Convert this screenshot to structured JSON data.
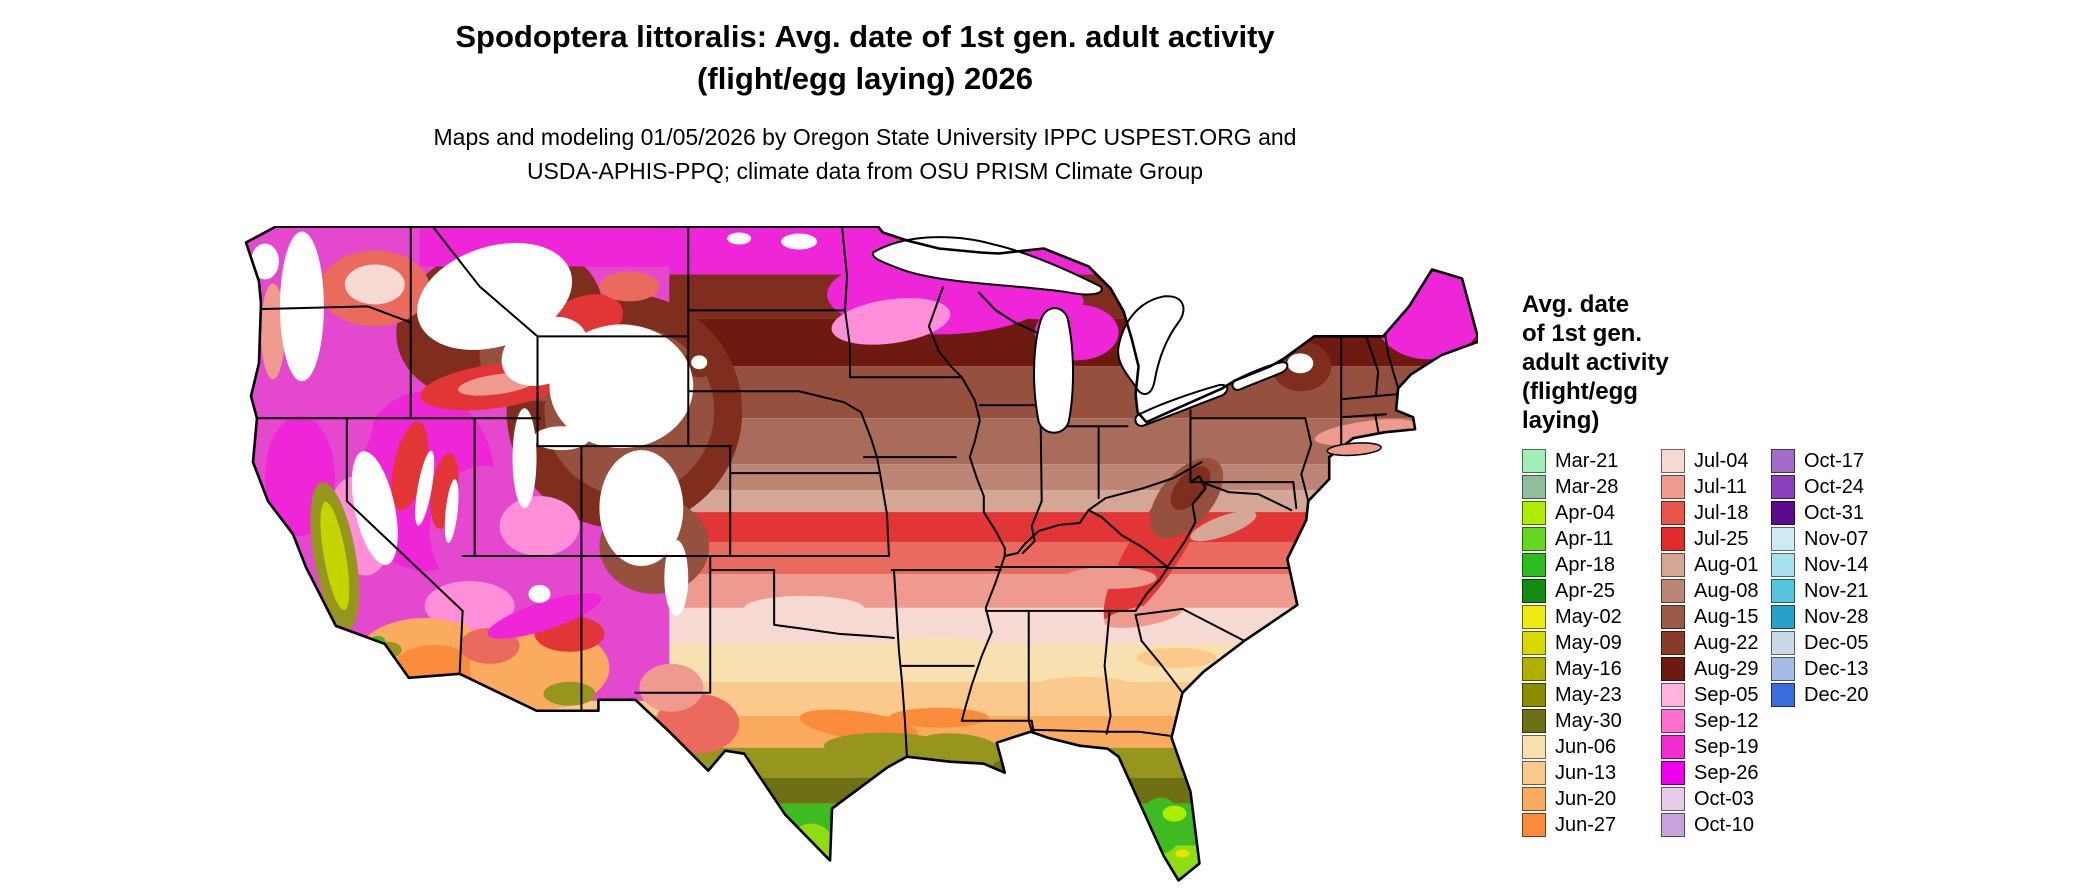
{
  "title": {
    "line1": "Spodoptera littoralis: Avg. date of 1st gen. adult activity",
    "line2": "(flight/egg laying) 2026"
  },
  "subtitle": {
    "line1": "Maps and modeling 01/05/2026 by Oregon State University IPPC USPEST.ORG and",
    "line2": "USDA-APHIS-PPQ; climate data from OSU PRISM Climate Group"
  },
  "legend": {
    "title_lines": [
      "Avg. date",
      "of 1st gen.",
      "adult activity",
      "(flight/egg",
      "laying)"
    ],
    "columns": [
      [
        {
          "label": "Mar-21",
          "color": "#9ef0b4"
        },
        {
          "label": "Mar-28",
          "color": "#8fbf9a"
        },
        {
          "label": "Apr-04",
          "color": "#abee00"
        },
        {
          "label": "Apr-11",
          "color": "#63d81e"
        },
        {
          "label": "Apr-18",
          "color": "#2dbb22"
        },
        {
          "label": "Apr-25",
          "color": "#128c12"
        },
        {
          "label": "May-02",
          "color": "#ecec13"
        },
        {
          "label": "May-09",
          "color": "#d9d900"
        },
        {
          "label": "May-16",
          "color": "#b0b000"
        },
        {
          "label": "May-23",
          "color": "#8c8c00"
        },
        {
          "label": "May-30",
          "color": "#6f6f14"
        },
        {
          "label": "Jun-06",
          "color": "#f8e0b0"
        },
        {
          "label": "Jun-13",
          "color": "#fbc98c"
        },
        {
          "label": "Jun-20",
          "color": "#fbab60"
        },
        {
          "label": "Jun-27",
          "color": "#fa8c3c"
        }
      ],
      [
        {
          "label": "Jul-04",
          "color": "#f6d9d2"
        },
        {
          "label": "Jul-11",
          "color": "#ef9a8f"
        },
        {
          "label": "Jul-18",
          "color": "#e85549"
        },
        {
          "label": "Jul-25",
          "color": "#e22c2c"
        },
        {
          "label": "Aug-01",
          "color": "#d3a696"
        },
        {
          "label": "Aug-08",
          "color": "#bc8576"
        },
        {
          "label": "Aug-15",
          "color": "#9a5a47"
        },
        {
          "label": "Aug-22",
          "color": "#8a3a28"
        },
        {
          "label": "Aug-29",
          "color": "#6e1a10"
        },
        {
          "label": "Sep-05",
          "color": "#ffb3de"
        },
        {
          "label": "Sep-12",
          "color": "#ff6fcf"
        },
        {
          "label": "Sep-19",
          "color": "#f32cd0"
        },
        {
          "label": "Sep-26",
          "color": "#ee00ee"
        },
        {
          "label": "Oct-03",
          "color": "#e8cbe8"
        },
        {
          "label": "Oct-10",
          "color": "#c9a3dd"
        }
      ],
      [
        {
          "label": "Oct-17",
          "color": "#a06cc8"
        },
        {
          "label": "Oct-24",
          "color": "#8b3fbb"
        },
        {
          "label": "Oct-31",
          "color": "#5c0a8e"
        },
        {
          "label": "Nov-07",
          "color": "#cfe9f5"
        },
        {
          "label": "Nov-14",
          "color": "#a8e0f0"
        },
        {
          "label": "Nov-21",
          "color": "#55c4e0"
        },
        {
          "label": "Nov-28",
          "color": "#2a9fc9"
        },
        {
          "label": "Dec-05",
          "color": "#c9d9ea"
        },
        {
          "label": "Dec-13",
          "color": "#a3bce8"
        },
        {
          "label": "Dec-20",
          "color": "#3a6ce0"
        }
      ]
    ]
  },
  "palette": {
    "magenta": "#ef25d8",
    "magentaMix": "#e448cf",
    "pink": "#ff8fd8",
    "lightPink": "#ffb3de",
    "darkMaroon": "#6e1a10",
    "darkBrown": "#7f2d1d",
    "brown": "#95503e",
    "mediumBrown": "#a96c5a",
    "lightBrown": "#bc8576",
    "paleBrown": "#d3a696",
    "red": "#e23535",
    "lightRed": "#ea6a5e",
    "salmon": "#ef9a8f",
    "palePink": "#f6d9d2",
    "paleOrange": "#f8e0b0",
    "lightOrange": "#fbc98c",
    "orange": "#fbab60",
    "deepOrange": "#fa8c3c",
    "olive": "#96961e",
    "darkOlive": "#6f6f14",
    "green": "#3dbb20",
    "chartreuse": "#aaee00",
    "yellowGreen": "#8edd12",
    "yellow": "#e8e400",
    "valleyGreen": "#c3d400",
    "white": "#ffffff"
  }
}
